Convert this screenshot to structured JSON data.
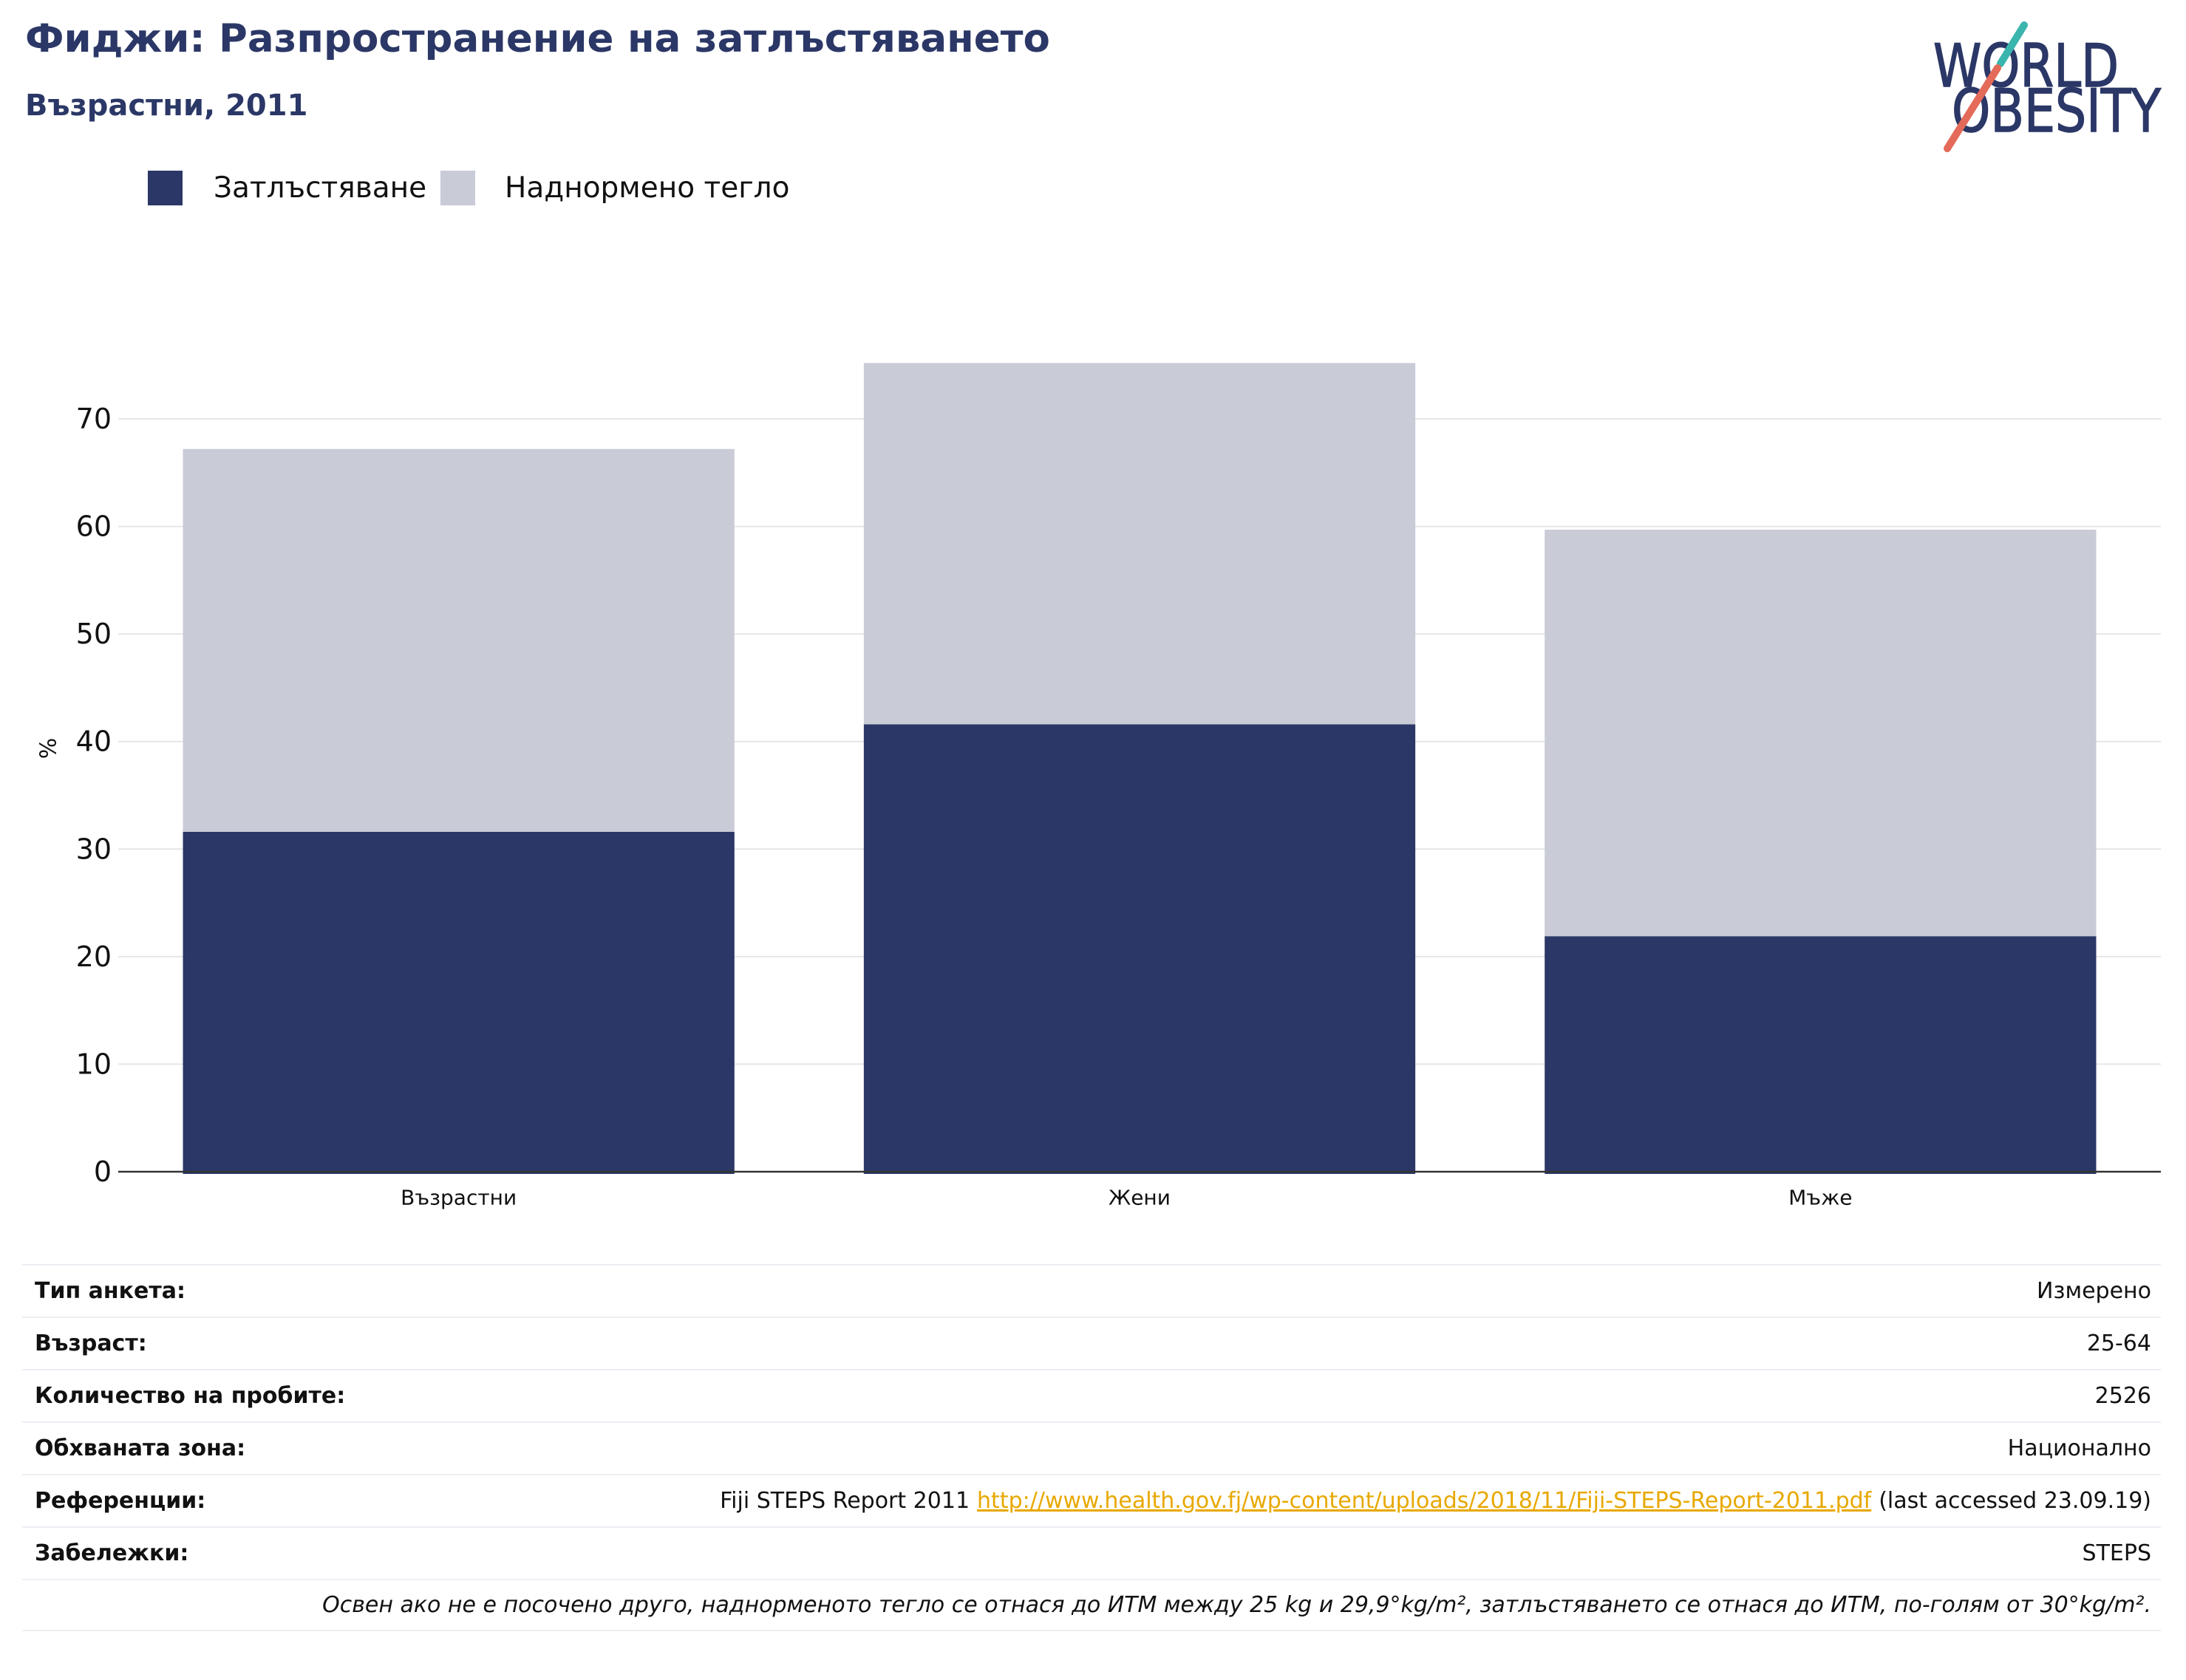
{
  "logo": {
    "line1": "WORLD",
    "line2": "OBESITY"
  },
  "colors": {
    "brand_navy": "#2b3766",
    "overweight_gray": "#c9cbd7",
    "link": "#e8a800",
    "logo_teal": "#3ab5ae",
    "logo_coral": "#e46a5a"
  },
  "chart_data": {
    "type": "bar",
    "stacked": true,
    "title": "Фиджи: Разпространение на затлъстяването",
    "subtitle": "Възрастни, 2011",
    "xlabel": "",
    "ylabel": "%",
    "categories": [
      "Възрастни",
      "Жени",
      "Мъже"
    ],
    "series": [
      {
        "name": "Затлъстяване",
        "color": "#2b3766",
        "values": [
          31.6,
          41.6,
          21.9
        ]
      },
      {
        "name": "Наднормено тегло",
        "color": "#c9cbd7",
        "values": [
          35.6,
          33.6,
          37.8
        ]
      }
    ],
    "ylim": [
      0,
      79
    ],
    "yticks": [
      0,
      10,
      20,
      30,
      40,
      50,
      60,
      70
    ],
    "grid": true,
    "legend_position": "top-left"
  },
  "details": {
    "survey_type": {
      "label": "Тип анкета:",
      "value": "Измерено"
    },
    "age": {
      "label": "Възраст:",
      "value": "25-64"
    },
    "sample_size": {
      "label": "Количество на пробите:",
      "value": "2526"
    },
    "area": {
      "label": "Обхваната зона:",
      "value": "Национално"
    },
    "references": {
      "label": "Референции:",
      "text": "Fiji STEPS Report 2011",
      "link": "http://www.health.gov.fj/wp-content/uploads/2018/11/Fiji-STEPS-Report-2011.pdf",
      "suffix": "(last accessed 23.09.19)"
    },
    "notes": {
      "label": "Забележки:",
      "value": "STEPS"
    },
    "footnote": "Освен ако не е посочено друго, наднорменото тегло се отнася до ИТМ между 25 kg и 29,9°kg/m², затлъстяването се отнася до ИТМ, по-голям от 30°kg/m²."
  }
}
